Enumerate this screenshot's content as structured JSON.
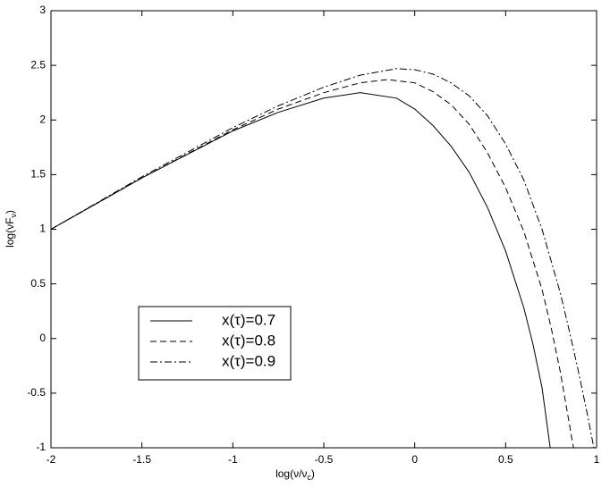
{
  "chart_data": {
    "type": "line",
    "xlabel": [
      "log(ν/ν",
      "c",
      ")"
    ],
    "ylabel": [
      "log(νF",
      "ν",
      ")"
    ],
    "xlim": [
      -2,
      1
    ],
    "ylim": [
      -1,
      3
    ],
    "xticks": [
      -2,
      -1.5,
      -1,
      -0.5,
      0,
      0.5,
      1
    ],
    "yticks": [
      -1,
      -0.5,
      0,
      0.5,
      1,
      1.5,
      2,
      2.5,
      3
    ],
    "legend": "lower-left",
    "series": [
      {
        "name": "x(τ)=0.7",
        "color": "#000000",
        "linestyle": "solid",
        "x": [
          -2,
          -1.5,
          -1,
          -0.75,
          -0.5,
          -0.3,
          -0.1,
          0,
          0.1,
          0.2,
          0.3,
          0.4,
          0.5,
          0.6,
          0.65,
          0.7,
          0.745
        ],
        "values": [
          1,
          1.47,
          1.9,
          2.07,
          2.2,
          2.25,
          2.2,
          2.1,
          1.95,
          1.76,
          1.52,
          1.2,
          0.8,
          0.28,
          -0.05,
          -0.45,
          -1
        ]
      },
      {
        "name": "x(τ)=0.8",
        "color": "#000000",
        "linestyle": "dashed",
        "x": [
          -2,
          -1.5,
          -1,
          -0.75,
          -0.5,
          -0.3,
          -0.15,
          0,
          0.1,
          0.2,
          0.3,
          0.4,
          0.5,
          0.6,
          0.7,
          0.75,
          0.8,
          0.873
        ],
        "values": [
          1,
          1.47,
          1.91,
          2.1,
          2.25,
          2.34,
          2.37,
          2.34,
          2.26,
          2.14,
          1.96,
          1.7,
          1.38,
          0.98,
          0.45,
          0.1,
          -0.3,
          -1
        ]
      },
      {
        "name": "x(τ)=0.9",
        "color": "#000000",
        "linestyle": "dashdot",
        "x": [
          -2,
          -1.5,
          -1,
          -0.75,
          -0.5,
          -0.3,
          -0.1,
          0,
          0.1,
          0.2,
          0.3,
          0.4,
          0.5,
          0.6,
          0.7,
          0.8,
          0.85,
          0.9,
          0.95,
          0.985
        ],
        "values": [
          1,
          1.48,
          1.93,
          2.13,
          2.3,
          2.41,
          2.47,
          2.46,
          2.42,
          2.34,
          2.22,
          2.04,
          1.78,
          1.45,
          1.0,
          0.42,
          0.07,
          -0.3,
          -0.7,
          -1
        ]
      }
    ]
  }
}
